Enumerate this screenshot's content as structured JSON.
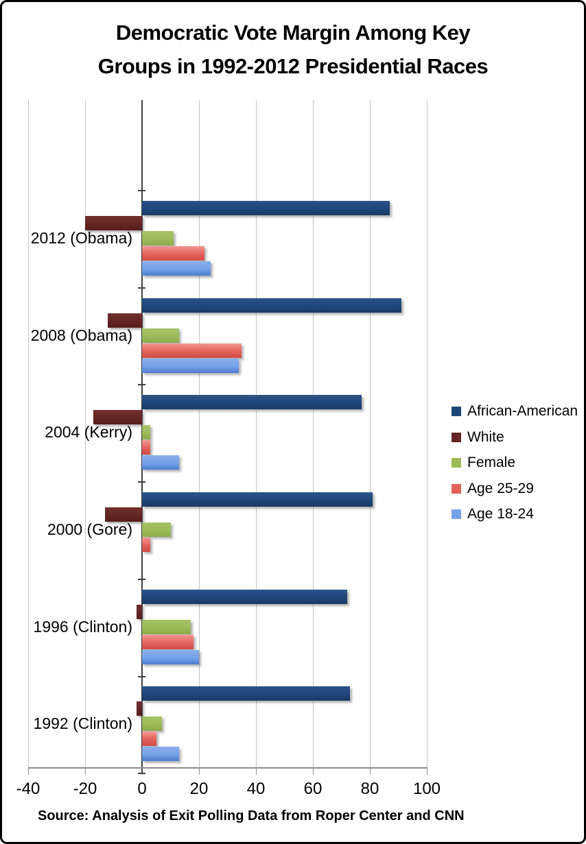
{
  "title": "Democratic Vote Margin Among Key\nGroups in 1992-2012 Presidential Races",
  "source_note": "Source: Analysis of Exit Polling Data from Roper Center and CNN",
  "chart_data": {
    "type": "bar",
    "orientation": "horizontal",
    "title": "Democratic Vote Margin Among Key Groups in 1992-2012 Presidential Races",
    "categories": [
      "2012 (Obama)",
      "2008 (Obama)",
      "2004 (Kerry)",
      "2000 (Gore)",
      "1996 (Clinton)",
      "1992 (Clinton)"
    ],
    "series": [
      {
        "name": "African-American",
        "color": "#1F4679",
        "color_top": "#2A548B",
        "color_bottom": "#1A3B66",
        "values": [
          87,
          91,
          77,
          81,
          72,
          73
        ]
      },
      {
        "name": "White",
        "color": "#632523",
        "color_top": "#71302E",
        "color_bottom": "#551E1C",
        "values": [
          -20,
          -12,
          -17,
          -13,
          -2,
          -2
        ]
      },
      {
        "name": "Female",
        "color": "#9BBB59",
        "color_top": "#A7C266",
        "color_bottom": "#8CA94B",
        "values": [
          11,
          13,
          3,
          10,
          17,
          7
        ]
      },
      {
        "name": "Age 25-29",
        "color": "#E2625C",
        "color_top": "#F2978F",
        "color_bottom": "#CE4B44",
        "values": [
          22,
          35,
          3,
          3,
          18,
          5
        ]
      },
      {
        "name": "Age 18-24",
        "color": "#74A2E8",
        "color_top": "#8BAEE9",
        "color_bottom": "#4E7CCE",
        "values": [
          24,
          34,
          13,
          0,
          20,
          13
        ]
      }
    ],
    "xlim": [
      -40,
      100
    ],
    "x_tick_labels": [
      "-40",
      "-20",
      "0",
      "20",
      "40",
      "60",
      "80",
      "100"
    ],
    "x_tick_values": [
      -40,
      -20,
      0,
      20,
      40,
      60,
      80,
      100
    ],
    "grid": true,
    "legend_position": "right",
    "axis_label_color": "#000000",
    "gridline_color": "#C3C3C3",
    "zero_axis_color": "#3F3F3F"
  }
}
